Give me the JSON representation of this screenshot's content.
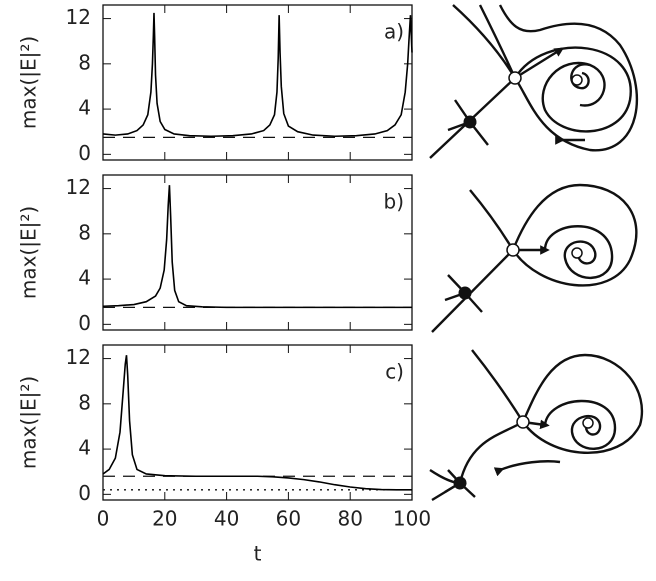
{
  "chart_data": [
    {
      "type": "line",
      "panel_label": "a)",
      "ylabel": "max(|E|²)",
      "xlim": [
        0,
        100
      ],
      "xticks": [
        0,
        20,
        40,
        60,
        80,
        100
      ],
      "ylim": [
        -0.5,
        13.2
      ],
      "yticks": [
        0,
        4,
        8,
        12
      ],
      "x": [
        0,
        4,
        8,
        11,
        13,
        14.5,
        15.5,
        16,
        16.3,
        16.5,
        16.7,
        17,
        17.5,
        18.5,
        20,
        23,
        28,
        35,
        42,
        48,
        52,
        54,
        55.5,
        56.3,
        56.7,
        57,
        57.3,
        57.7,
        58.5,
        60,
        63,
        68,
        75,
        82,
        88,
        92,
        94.5,
        96.5,
        97.8,
        98.6,
        99,
        99.5,
        100
      ],
      "series": [
        {
          "color": "#000000",
          "values": [
            1.8,
            1.7,
            1.8,
            2.1,
            2.6,
            3.5,
            5.5,
            8,
            10.5,
            12.5,
            10.5,
            7,
            4.5,
            2.9,
            2.2,
            1.8,
            1.65,
            1.6,
            1.65,
            1.8,
            2.1,
            2.6,
            3.5,
            5.5,
            8.5,
            12.3,
            9,
            6,
            3.6,
            2.5,
            2,
            1.7,
            1.6,
            1.65,
            1.8,
            2.1,
            2.6,
            3.5,
            5.5,
            8,
            10,
            12.3,
            9
          ]
        }
      ],
      "hlines": [
        {
          "y": 1.5,
          "style": "dashed"
        }
      ]
    },
    {
      "type": "line",
      "panel_label": "b)",
      "ylabel": "max(|E|²)",
      "xlim": [
        0,
        100
      ],
      "xticks": [
        0,
        20,
        40,
        60,
        80,
        100
      ],
      "ylim": [
        -0.5,
        13.2
      ],
      "yticks": [
        0,
        4,
        8,
        12
      ],
      "x": [
        0,
        5,
        10,
        14,
        17,
        18.5,
        19.8,
        20.6,
        21.1,
        21.5,
        21.9,
        22.4,
        23.2,
        24.5,
        27,
        32,
        40,
        60,
        80,
        100
      ],
      "series": [
        {
          "color": "#000000",
          "values": [
            1.6,
            1.65,
            1.75,
            2,
            2.5,
            3.2,
            4.8,
            7.5,
            10.5,
            12.3,
            9.5,
            5.5,
            3,
            2,
            1.65,
            1.55,
            1.5,
            1.5,
            1.5,
            1.5
          ]
        }
      ],
      "hlines": [
        {
          "y": 1.5,
          "style": "dashed"
        }
      ]
    },
    {
      "type": "line",
      "panel_label": "c)",
      "ylabel": "max(|E|²)",
      "xlabel": "t",
      "xlim": [
        0,
        100
      ],
      "xticks": [
        0,
        20,
        40,
        60,
        80,
        100
      ],
      "ylim": [
        -0.5,
        13.2
      ],
      "yticks": [
        0,
        4,
        8,
        12
      ],
      "x": [
        0,
        2,
        4,
        5.5,
        6.5,
        7.2,
        7.6,
        8,
        8.6,
        9.5,
        11,
        14,
        20,
        30,
        40,
        50,
        55,
        60,
        65,
        70,
        75,
        80,
        85,
        90,
        95,
        100
      ],
      "series": [
        {
          "color": "#000000",
          "values": [
            1.8,
            2.2,
            3.2,
            5.5,
            9,
            11.5,
            12.3,
            10.5,
            6.5,
            3.5,
            2.2,
            1.8,
            1.65,
            1.6,
            1.6,
            1.6,
            1.55,
            1.45,
            1.3,
            1.1,
            0.85,
            0.65,
            0.5,
            0.42,
            0.4,
            0.4
          ]
        }
      ],
      "hlines": [
        {
          "y": 1.6,
          "style": "dashed"
        },
        {
          "y": 0.4,
          "style": "dotted"
        }
      ]
    }
  ]
}
